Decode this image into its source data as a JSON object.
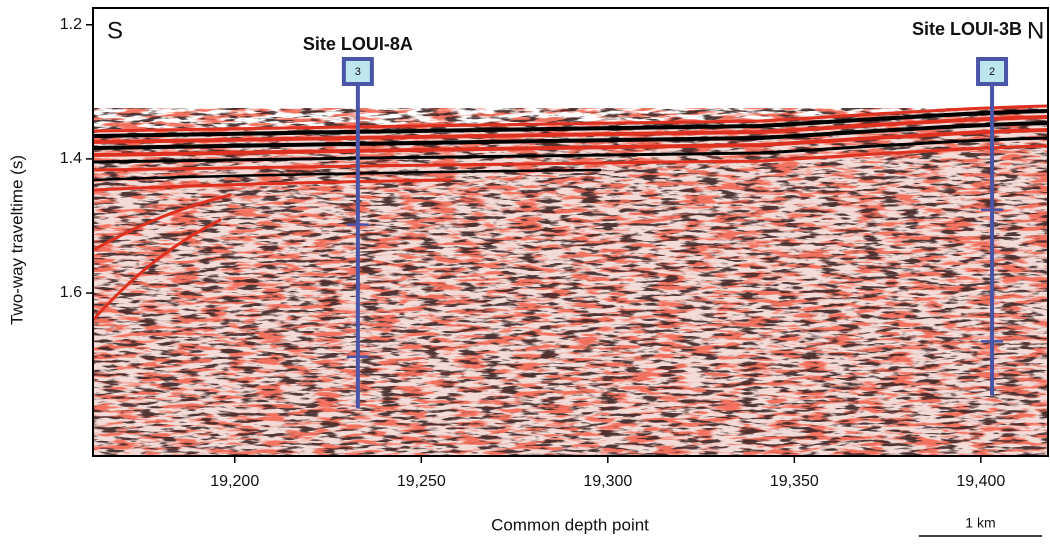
{
  "chart_data": {
    "type": "seismic",
    "x_label": "Common depth point",
    "y_label": "Two-way traveltime (s)",
    "xlim": [
      19162,
      19418
    ],
    "xticks": [
      {
        "value": 19200,
        "label": "19,200"
      },
      {
        "value": 19250,
        "label": "19,250"
      },
      {
        "value": 19300,
        "label": "19,300"
      },
      {
        "value": 19350,
        "label": "19,350"
      },
      {
        "value": 19400,
        "label": "19,400"
      }
    ],
    "ylim": [
      1.175,
      1.843
    ],
    "y_reversed": true,
    "yticks": [
      1.2,
      1.4,
      1.6
    ],
    "left_label": "S",
    "right_label": "N",
    "scale_bar": {
      "label": "1 km",
      "length": 33
    },
    "sites": [
      {
        "name": "Site LOUI-8A",
        "badge": "3",
        "cdp": 19233,
        "bottom": 1.772,
        "markers": [
          1.498,
          1.695
        ]
      },
      {
        "name": "Site LOUI-3B",
        "badge": "2",
        "cdp": 19403,
        "bottom": 1.753,
        "markers": [
          1.476,
          1.672
        ]
      }
    ],
    "site_color": "#4a55a8"
  }
}
